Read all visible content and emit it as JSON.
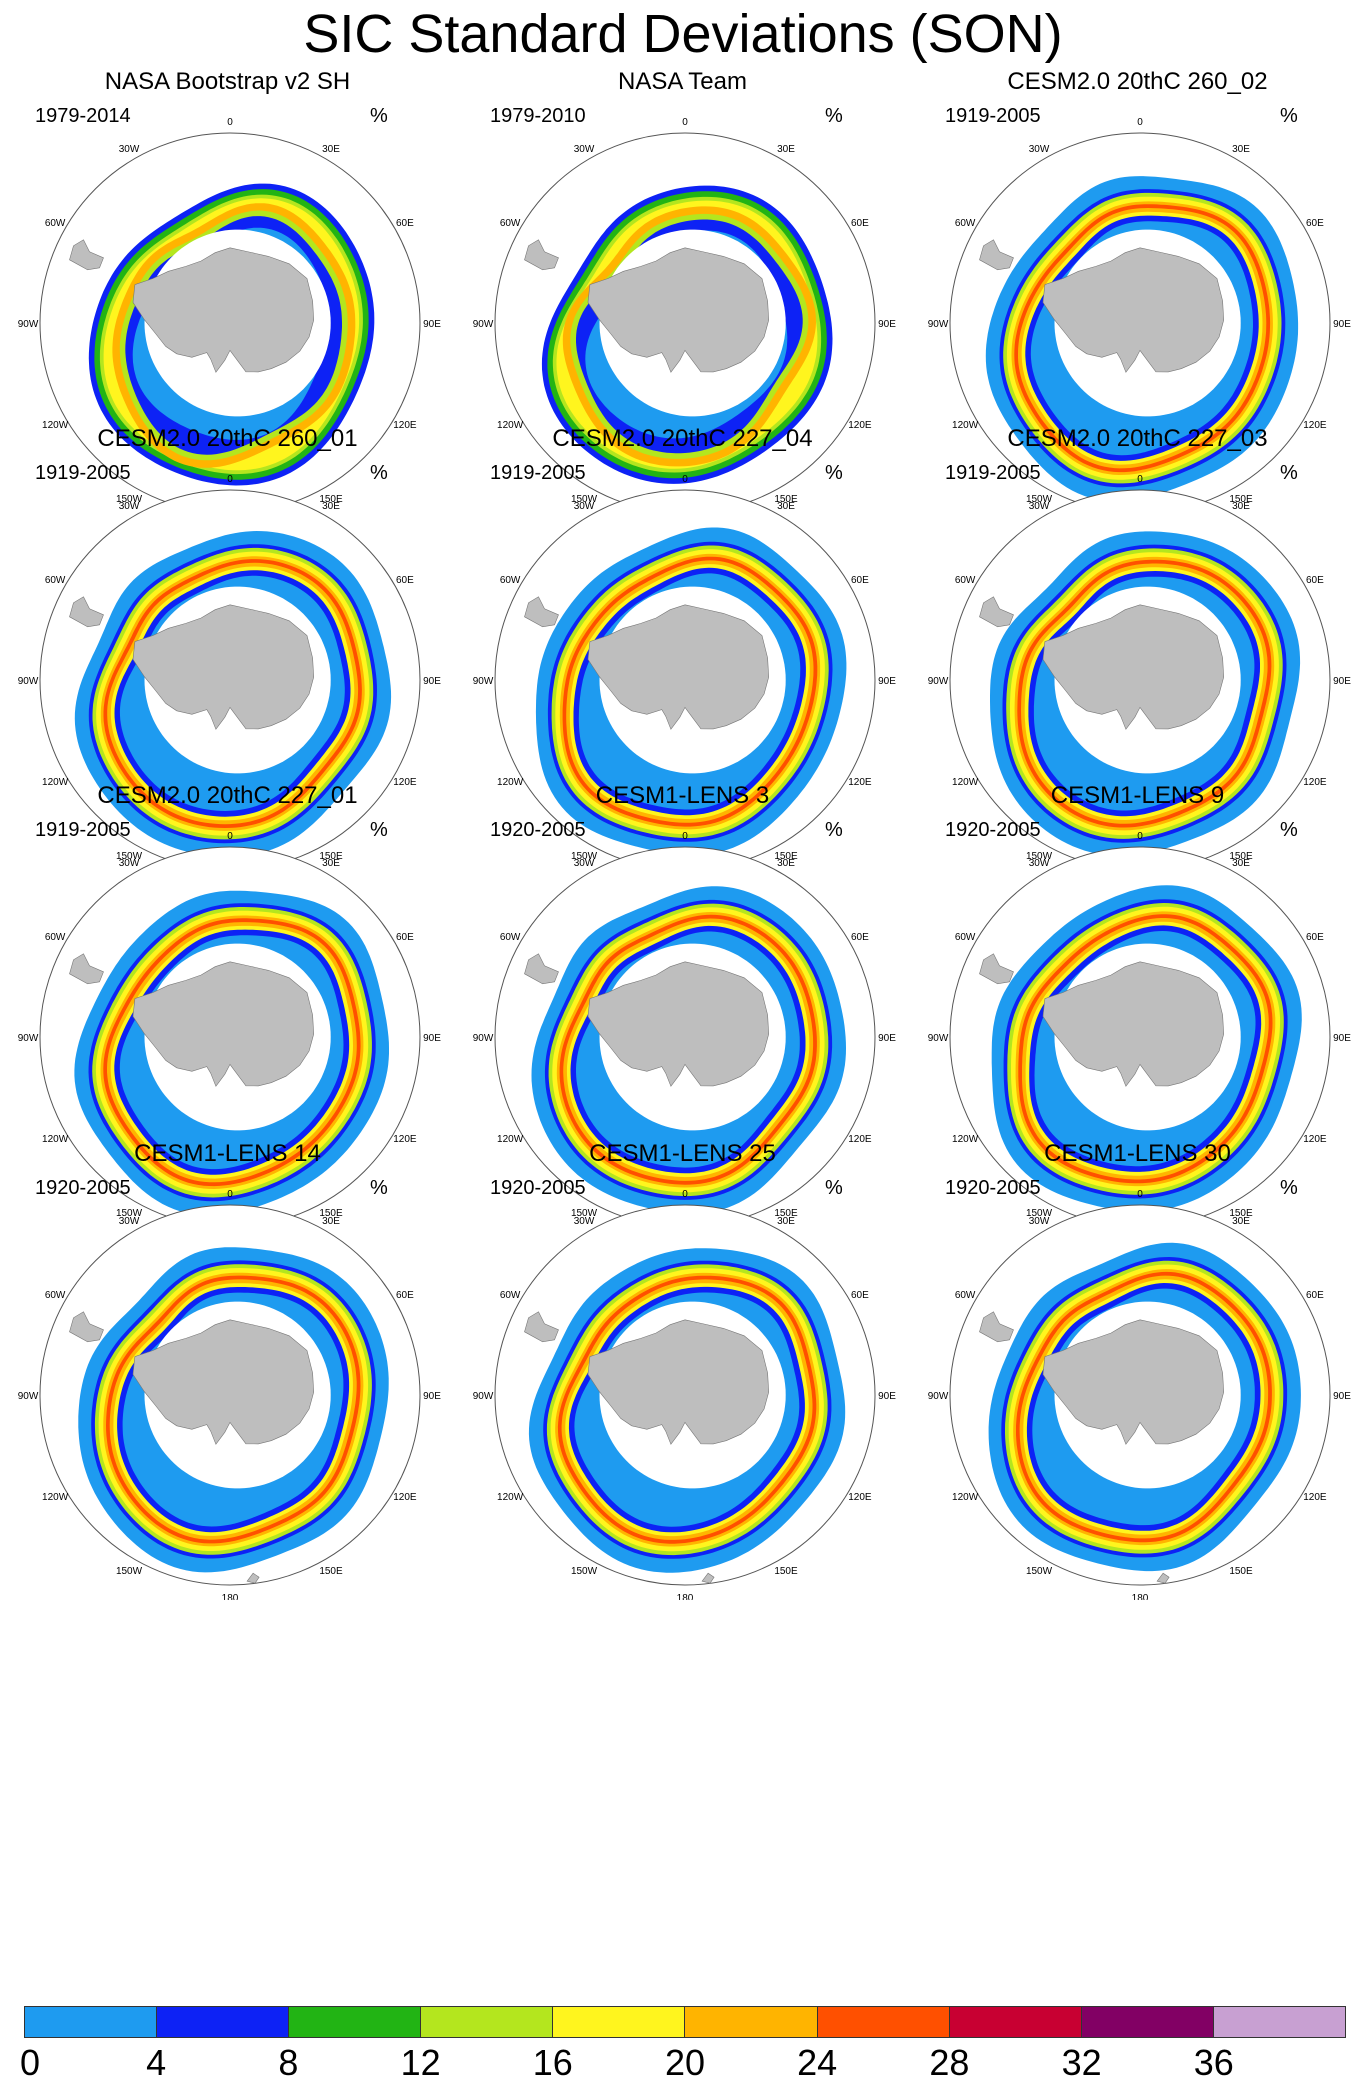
{
  "title": "SIC Standard Deviations (SON)",
  "units": "%",
  "longitude_labels": [
    "0",
    "30E",
    "60E",
    "90E",
    "120E",
    "150E",
    "180",
    "150W",
    "120W",
    "90W",
    "60W",
    "30W"
  ],
  "panels": [
    {
      "title": "NASA Bootstrap v2 SH",
      "years": "1979-2014",
      "variant": "obs1"
    },
    {
      "title": "NASA Team",
      "years": "1979-2010",
      "variant": "obs2"
    },
    {
      "title": "CESM2.0 20thC 260_02",
      "years": "1919-2005",
      "variant": "model"
    },
    {
      "title": "CESM2.0 20thC 260_01",
      "years": "1919-2005",
      "variant": "model"
    },
    {
      "title": "CESM2.0 20thC 227_04",
      "years": "1919-2005",
      "variant": "model"
    },
    {
      "title": "CESM2.0 20thC 227_03",
      "years": "1919-2005",
      "variant": "model"
    },
    {
      "title": "CESM2.0 20thC 227_01",
      "years": "1919-2005",
      "variant": "model"
    },
    {
      "title": "CESM1-LENS 3",
      "years": "1920-2005",
      "variant": "model"
    },
    {
      "title": "CESM1-LENS 9",
      "years": "1920-2005",
      "variant": "model"
    },
    {
      "title": "CESM1-LENS 14",
      "years": "1920-2005",
      "variant": "model"
    },
    {
      "title": "CESM1-LENS 25",
      "years": "1920-2005",
      "variant": "model"
    },
    {
      "title": "CESM1-LENS 30",
      "years": "1920-2005",
      "variant": "model"
    }
  ],
  "colorbar": {
    "labels": [
      "0",
      "4",
      "8",
      "12",
      "16",
      "20",
      "24",
      "28",
      "32",
      "36"
    ],
    "colors": [
      "#1e9bf0",
      "#0d22f5",
      "#22b414",
      "#b4e61e",
      "#fff51e",
      "#ffb400",
      "#ff5000",
      "#c80032",
      "#820064",
      "#c8a0d2"
    ]
  },
  "colors": {
    "land": "#bebebe",
    "ocean_background": "#ffffff",
    "circle_line": "#555555"
  }
}
